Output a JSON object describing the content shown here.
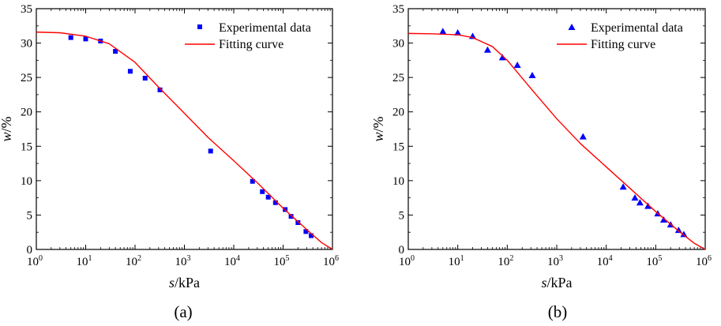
{
  "chart_data": [
    {
      "type": "scatter",
      "panel_label": "(a)",
      "xscale": "log",
      "xlim": [
        1,
        1000000
      ],
      "ylim": [
        0,
        35
      ],
      "xticks": [
        {
          "base": "10",
          "exp": "0"
        },
        {
          "base": "10",
          "exp": "1"
        },
        {
          "base": "10",
          "exp": "2"
        },
        {
          "base": "10",
          "exp": "3"
        },
        {
          "base": "10",
          "exp": "4"
        },
        {
          "base": "10",
          "exp": "5"
        },
        {
          "base": "10",
          "exp": "6"
        }
      ],
      "yticks": [
        "0",
        "5",
        "10",
        "15",
        "20",
        "25",
        "30",
        "35"
      ],
      "xlabel": {
        "var": "s",
        "unit": "/kPa"
      },
      "ylabel": {
        "var": "w",
        "unit": "/%"
      },
      "legend_position": "top-right",
      "series": [
        {
          "name": "Experimental data",
          "kind": "points",
          "marker": "square",
          "color": "#0000ff",
          "points": [
            [
              5,
              30.8
            ],
            [
              10,
              30.6
            ],
            [
              20,
              30.3
            ],
            [
              40,
              28.8
            ],
            [
              80,
              25.9
            ],
            [
              160,
              24.9
            ],
            [
              320,
              23.2
            ],
            [
              3400,
              14.3
            ],
            [
              24000,
              9.9
            ],
            [
              38000,
              8.4
            ],
            [
              50000,
              7.6
            ],
            [
              70000,
              6.8
            ],
            [
              110000,
              5.8
            ],
            [
              145000,
              4.8
            ],
            [
              200000,
              3.9
            ],
            [
              290000,
              2.6
            ],
            [
              370000,
              2.0
            ]
          ]
        },
        {
          "name": "Fitting curve",
          "kind": "line",
          "color": "#ff0000",
          "points": [
            [
              1,
              31.6
            ],
            [
              3,
              31.5
            ],
            [
              10,
              31.0
            ],
            [
              30,
              29.9
            ],
            [
              100,
              27.2
            ],
            [
              300,
              23.6
            ],
            [
              1000,
              19.8
            ],
            [
              3000,
              16.3
            ],
            [
              10000,
              12.9
            ],
            [
              30000,
              9.7
            ],
            [
              100000,
              6.0
            ],
            [
              300000,
              2.9
            ],
            [
              600000,
              1.0
            ],
            [
              1000000,
              0
            ]
          ]
        }
      ]
    },
    {
      "type": "scatter",
      "panel_label": "(b)",
      "xscale": "log",
      "xlim": [
        1,
        1000000
      ],
      "ylim": [
        0,
        35
      ],
      "xticks": [
        {
          "base": "10",
          "exp": "0"
        },
        {
          "base": "10",
          "exp": "1"
        },
        {
          "base": "10",
          "exp": "2"
        },
        {
          "base": "10",
          "exp": "3"
        },
        {
          "base": "10",
          "exp": "4"
        },
        {
          "base": "10",
          "exp": "5"
        },
        {
          "base": "10",
          "exp": "6"
        }
      ],
      "yticks": [
        "0",
        "5",
        "10",
        "15",
        "20",
        "25",
        "30",
        "35"
      ],
      "xlabel": {
        "var": "s",
        "unit": "/kPa"
      },
      "ylabel": {
        "var": "w",
        "unit": "/%"
      },
      "legend_position": "top-right",
      "series": [
        {
          "name": "Experimental data",
          "kind": "points",
          "marker": "triangle",
          "color": "#0000ff",
          "points": [
            [
              5,
              31.7
            ],
            [
              10,
              31.5
            ],
            [
              20,
              31.0
            ],
            [
              40,
              29.0
            ],
            [
              80,
              27.9
            ],
            [
              160,
              26.8
            ],
            [
              320,
              25.3
            ],
            [
              3400,
              16.4
            ],
            [
              22000,
              9.1
            ],
            [
              38000,
              7.5
            ],
            [
              48000,
              6.8
            ],
            [
              70000,
              6.3
            ],
            [
              110000,
              5.2
            ],
            [
              145000,
              4.3
            ],
            [
              200000,
              3.6
            ],
            [
              290000,
              2.8
            ],
            [
              370000,
              2.2
            ]
          ]
        },
        {
          "name": "Fitting curve",
          "kind": "line",
          "color": "#ff0000",
          "points": [
            [
              1,
              31.4
            ],
            [
              3,
              31.35
            ],
            [
              10,
              31.2
            ],
            [
              20,
              30.8
            ],
            [
              50,
              29.5
            ],
            [
              100,
              27.5
            ],
            [
              300,
              23.4
            ],
            [
              1000,
              19.0
            ],
            [
              3000,
              15.4
            ],
            [
              10000,
              12.0
            ],
            [
              30000,
              8.9
            ],
            [
              100000,
              5.5
            ],
            [
              300000,
              2.6
            ],
            [
              600000,
              0.9
            ],
            [
              1000000,
              0
            ]
          ]
        }
      ]
    }
  ]
}
